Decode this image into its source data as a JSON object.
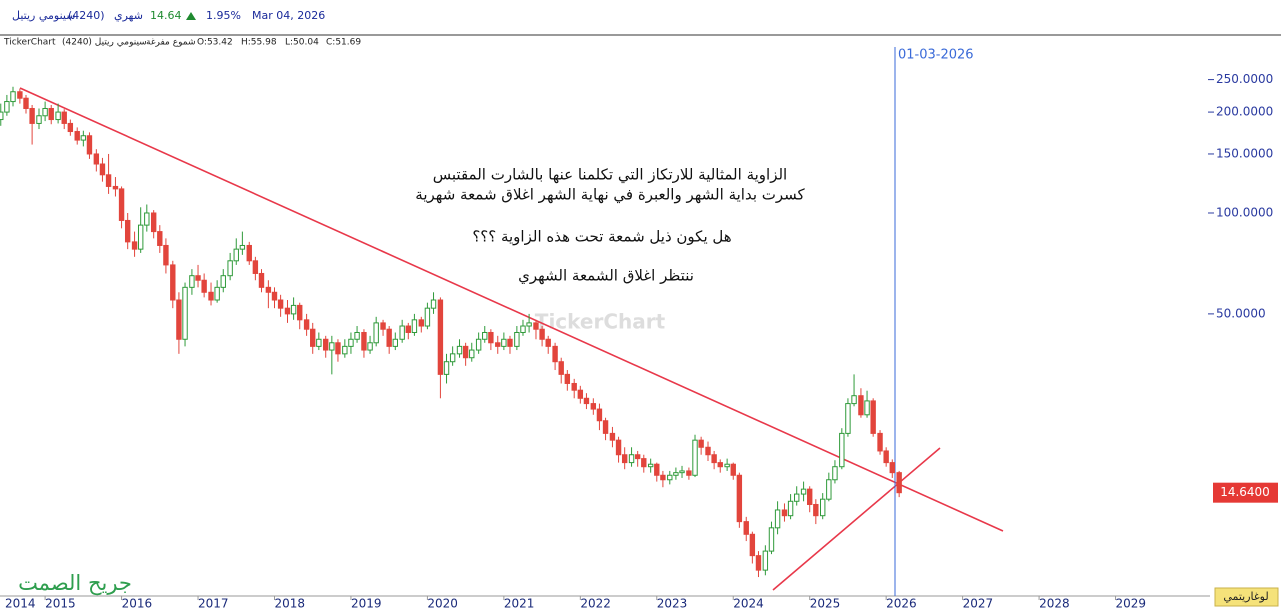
{
  "header": {
    "symbol": "سينومي ريتيل",
    "code": "(4240)",
    "period": "شهري",
    "price": "14.64",
    "change": "1.95%",
    "date": "Mar 04, 2026",
    "source": "TickerChart",
    "instrument": "سينومي ريتيل  (4240)",
    "style": "شموع مفرغة",
    "o": "O:53.42",
    "h": "H:55.98",
    "l": "L:50.04",
    "c": "C:51.69"
  },
  "chart_data": {
    "type": "candlestick",
    "log_scale": true,
    "up_color": "#2f9a3a",
    "down_color": "#e2453c",
    "annotations": [
      "الزاوية المثالية للارتكاز التي تكلمنا عنها بالشارت المقتبس",
      "كسرت بداية الشهر والعبرة في نهاية الشهر اغلاق شمعة شهرية",
      "هل يكون ذيل شمعة تحت هذه الزاوية ؟؟؟",
      "ننتظر اغلاق الشمعة الشهري"
    ],
    "marker_date": "01-03-2026",
    "last_price": {
      "value": 14.64,
      "label": "14.6400"
    },
    "scale_button": "لوغاريتمي",
    "watermark": "TickerChart",
    "signature": "جريح الصمت",
    "xlim": [
      2014.41,
      2030.17
    ],
    "xticks": [
      2014,
      2015,
      2016,
      2017,
      2018,
      2019,
      2020,
      2021,
      2022,
      2023,
      2024,
      2025,
      2026,
      2027,
      2028,
      2029
    ],
    "ylim": [
      7.4,
      335
    ],
    "yticks": [
      {
        "value": 250,
        "label": "250.0000"
      },
      {
        "value": 200,
        "label": "200.0000"
      },
      {
        "value": 150,
        "label": "150.0000"
      },
      {
        "value": 100,
        "label": "100.0000"
      },
      {
        "value": 50,
        "label": "50.0000"
      }
    ],
    "x": [
      2014.42,
      2014.5,
      2014.58,
      2014.67,
      2014.75,
      2014.83,
      2014.92,
      2015.0,
      2015.08,
      2015.17,
      2015.25,
      2015.33,
      2015.42,
      2015.5,
      2015.58,
      2015.67,
      2015.75,
      2015.83,
      2015.92,
      2016.0,
      2016.08,
      2016.17,
      2016.25,
      2016.33,
      2016.42,
      2016.5,
      2016.58,
      2016.67,
      2016.75,
      2016.83,
      2016.92,
      2017.0,
      2017.08,
      2017.17,
      2017.25,
      2017.33,
      2017.42,
      2017.5,
      2017.58,
      2017.67,
      2017.75,
      2017.83,
      2017.92,
      2018.0,
      2018.08,
      2018.17,
      2018.25,
      2018.33,
      2018.42,
      2018.5,
      2018.58,
      2018.67,
      2018.75,
      2018.83,
      2018.92,
      2019.0,
      2019.08,
      2019.17,
      2019.25,
      2019.33,
      2019.42,
      2019.5,
      2019.58,
      2019.67,
      2019.75,
      2019.83,
      2019.92,
      2020.0,
      2020.08,
      2020.17,
      2020.25,
      2020.33,
      2020.42,
      2020.5,
      2020.58,
      2020.67,
      2020.75,
      2020.83,
      2020.92,
      2021.0,
      2021.08,
      2021.17,
      2021.25,
      2021.33,
      2021.42,
      2021.5,
      2021.58,
      2021.67,
      2021.75,
      2021.83,
      2021.92,
      2022.0,
      2022.08,
      2022.17,
      2022.25,
      2022.33,
      2022.42,
      2022.5,
      2022.58,
      2022.67,
      2022.75,
      2022.83,
      2022.92,
      2023.0,
      2023.08,
      2023.17,
      2023.25,
      2023.33,
      2023.42,
      2023.5,
      2023.58,
      2023.67,
      2023.75,
      2023.83,
      2023.92,
      2024.0,
      2024.08,
      2024.17,
      2024.25,
      2024.33,
      2024.42,
      2024.5,
      2024.58,
      2024.67,
      2024.75,
      2024.83,
      2024.92,
      2025.0,
      2025.08,
      2025.17,
      2025.25,
      2025.33,
      2025.42,
      2025.5,
      2025.58,
      2025.67,
      2025.75,
      2025.83,
      2025.92,
      2026.0,
      2026.08,
      2026.17
    ],
    "open": [
      190,
      200,
      215,
      230,
      220,
      205,
      185,
      195,
      205,
      190,
      200,
      185,
      175,
      165,
      170,
      150,
      140,
      130,
      120,
      118,
      95,
      82,
      78,
      92,
      100,
      88,
      80,
      70,
      55,
      42,
      60,
      65,
      63,
      58,
      55,
      60,
      65,
      72,
      78,
      80,
      72,
      66,
      60,
      58,
      55,
      52,
      50,
      53,
      48,
      45,
      40,
      42,
      39,
      41,
      38,
      40,
      42,
      44,
      39,
      41,
      47,
      45,
      40,
      42,
      46,
      44,
      48,
      46,
      52,
      55,
      33,
      36,
      38,
      40,
      37,
      39,
      42,
      44,
      41,
      40,
      42,
      40,
      44,
      46,
      47,
      45,
      42,
      40,
      36,
      33,
      31,
      29.6,
      28,
      27,
      26,
      24,
      22,
      21,
      19,
      18,
      19,
      18.5,
      17.5,
      17.8,
      16.5,
      16,
      16.5,
      16.8,
      17,
      16.5,
      21,
      20,
      19,
      18,
      17.5,
      17.8,
      16.5,
      12,
      11,
      9.5,
      8.6,
      9.8,
      11.5,
      13,
      12.5,
      13.8,
      14.5,
      15,
      13.5,
      12.5,
      14,
      16,
      17.5,
      22,
      27,
      28.5,
      25,
      27.5,
      22,
      19.5,
      18,
      16.8
    ],
    "high": [
      212,
      225,
      238,
      235,
      225,
      210,
      205,
      215,
      210,
      212,
      204,
      190,
      180,
      176,
      174,
      155,
      146,
      150,
      128,
      120,
      100,
      88,
      104,
      106,
      102,
      92,
      84,
      72,
      58,
      62,
      68,
      70,
      66,
      62,
      63,
      68,
      76,
      84,
      88,
      82,
      74,
      68,
      63,
      60,
      57,
      55,
      56,
      54,
      50,
      47,
      44,
      43,
      43,
      42,
      42,
      44,
      46,
      45,
      43,
      49,
      48,
      46,
      44,
      48,
      47,
      50,
      49,
      54,
      58,
      56,
      38,
      40,
      42,
      41,
      41,
      44,
      46,
      45,
      43,
      44,
      43,
      46,
      48,
      50,
      48,
      46,
      43,
      41,
      37,
      34,
      32,
      30.5,
      29,
      28,
      27,
      24.5,
      23,
      21.5,
      20,
      20,
      19.5,
      19,
      18.5,
      18,
      17,
      17,
      17.4,
      17.6,
      17.4,
      21.8,
      21.5,
      20.8,
      19.5,
      18.4,
      18.5,
      18,
      16.8,
      12.4,
      11.2,
      9.8,
      10.2,
      12,
      13.8,
      13.6,
      14.5,
      15.3,
      15.8,
      15.3,
      14,
      14.6,
      16.8,
      18.3,
      22.8,
      28,
      33,
      30,
      29.5,
      28,
      22.5,
      20,
      18.4,
      17
    ],
    "low": [
      182,
      195,
      208,
      212,
      198,
      160,
      178,
      188,
      184,
      185,
      178,
      170,
      160,
      158,
      145,
      133,
      124,
      114,
      112,
      90,
      78,
      74,
      76,
      88,
      84,
      76,
      66,
      52,
      38,
      40,
      57,
      60,
      56,
      53,
      54,
      58,
      63,
      70,
      75,
      70,
      63,
      58,
      52,
      52,
      49,
      47,
      48,
      45,
      43,
      38,
      39,
      37,
      33,
      36,
      37,
      38,
      41,
      37,
      38,
      40,
      43,
      38,
      39,
      41,
      42,
      43,
      44,
      45,
      50,
      28,
      31,
      35,
      37,
      35,
      36,
      38,
      41,
      39,
      38,
      39,
      38,
      39,
      43,
      44,
      42,
      40,
      38,
      34,
      31,
      29.5,
      28,
      27,
      26,
      25,
      22.5,
      21,
      20,
      18,
      17.2,
      17.5,
      17.5,
      16.8,
      16.8,
      15.8,
      15.2,
      15.5,
      16,
      16.2,
      16,
      16.3,
      19,
      18.2,
      17.2,
      16.8,
      17,
      16,
      11.5,
      10.5,
      9,
      8.2,
      8.3,
      9.6,
      11,
      12,
      12.2,
      13.4,
      13.8,
      12.8,
      11.8,
      12.2,
      13.8,
      15.6,
      17.2,
      21.5,
      26.5,
      24.5,
      24.5,
      21.5,
      19,
      17.5,
      16.2,
      14.2
    ],
    "close": [
      200,
      215,
      230,
      220,
      205,
      185,
      195,
      205,
      190,
      200,
      185,
      175,
      165,
      170,
      150,
      140,
      130,
      120,
      118,
      95,
      82,
      78,
      92,
      100,
      88,
      80,
      70,
      55,
      42,
      60,
      65,
      63,
      58,
      55,
      60,
      65,
      72,
      78,
      80,
      72,
      66,
      60,
      58,
      55,
      52,
      50,
      53,
      48,
      45,
      40,
      42,
      39,
      41,
      38,
      40,
      42,
      44,
      39,
      41,
      47,
      45,
      40,
      42,
      46,
      44,
      48,
      46,
      52,
      55,
      33,
      36,
      38,
      40,
      37,
      39,
      42,
      44,
      41,
      40,
      42,
      40,
      44,
      46,
      47,
      45,
      42,
      40,
      36,
      33,
      31,
      29.6,
      28,
      27,
      26,
      24,
      22,
      21,
      19,
      18,
      19,
      18.5,
      17.5,
      17.8,
      16.5,
      16,
      16.5,
      16.8,
      17,
      16.5,
      21,
      20,
      19,
      18,
      17.5,
      17.8,
      16.5,
      12,
      11,
      9.5,
      8.6,
      9.8,
      11.5,
      13,
      12.5,
      13.8,
      14.5,
      15,
      13.5,
      12.5,
      14,
      16,
      17.5,
      22,
      27,
      28.5,
      25,
      27.5,
      22,
      19.5,
      18,
      16.8,
      14.64
    ]
  }
}
